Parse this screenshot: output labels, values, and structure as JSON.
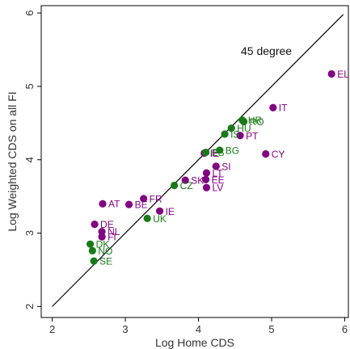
{
  "chart_data": {
    "type": "scatter",
    "xlabel": "Log Home CDS",
    "ylabel": "Log Weighted CDS on all FI",
    "xlim": [
      1.85,
      6.05
    ],
    "ylim": [
      1.85,
      6.1
    ],
    "x_ticks": [
      2,
      3,
      4,
      5,
      6
    ],
    "y_ticks": [
      2,
      3,
      4,
      5,
      6
    ],
    "grid": false,
    "reference_line": {
      "label": "45 degree",
      "from": [
        2.0,
        2.0
      ],
      "to": [
        5.98,
        5.98
      ]
    },
    "colors": {
      "purple": "#800080",
      "green": "#1a7a1a",
      "line": "#000000",
      "frame": "#000000"
    },
    "series": [
      {
        "color_key": "purple",
        "points": [
          {
            "label": "EL",
            "x": 5.82,
            "y": 5.17
          },
          {
            "label": "IT",
            "x": 5.02,
            "y": 4.71
          },
          {
            "label": "CY",
            "x": 4.92,
            "y": 4.08
          },
          {
            "label": "PT",
            "x": 4.57,
            "y": 4.33
          },
          {
            "label": "IE",
            "x": 4.08,
            "y": 4.09
          },
          {
            "label": "SI",
            "x": 4.24,
            "y": 3.91
          },
          {
            "label": "LT",
            "x": 4.11,
            "y": 3.82
          },
          {
            "label": "EE",
            "x": 4.1,
            "y": 3.73
          },
          {
            "label": "LV",
            "x": 4.11,
            "y": 3.62
          },
          {
            "label": "SK",
            "x": 3.82,
            "y": 3.72
          },
          {
            "label": "FR",
            "x": 3.25,
            "y": 3.47
          },
          {
            "label": "BE",
            "x": 3.05,
            "y": 3.39
          },
          {
            "label": "AT",
            "x": 2.69,
            "y": 3.4
          },
          {
            "label": "IE",
            "x": 3.47,
            "y": 3.3
          },
          {
            "label": "DE",
            "x": 2.58,
            "y": 3.12
          },
          {
            "label": "NL",
            "x": 2.68,
            "y": 3.02
          },
          {
            "label": "FI",
            "x": 2.68,
            "y": 2.95
          }
        ]
      },
      {
        "color_key": "green",
        "points": [
          {
            "label": "HR",
            "x": 4.6,
            "y": 4.54
          },
          {
            "label": "RO",
            "x": 4.62,
            "y": 4.52
          },
          {
            "label": "HU",
            "x": 4.45,
            "y": 4.43
          },
          {
            "label": "IS",
            "x": 4.36,
            "y": 4.35
          },
          {
            "label": "BG",
            "x": 4.29,
            "y": 4.13
          },
          {
            "label": "ES",
            "x": 4.1,
            "y": 4.1
          },
          {
            "label": "CZ",
            "x": 3.67,
            "y": 3.65
          },
          {
            "label": "UK",
            "x": 3.3,
            "y": 3.2
          },
          {
            "label": "DK",
            "x": 2.52,
            "y": 2.85
          },
          {
            "label": "NO",
            "x": 2.55,
            "y": 2.76
          },
          {
            "label": "SE",
            "x": 2.57,
            "y": 2.62
          }
        ]
      }
    ]
  }
}
